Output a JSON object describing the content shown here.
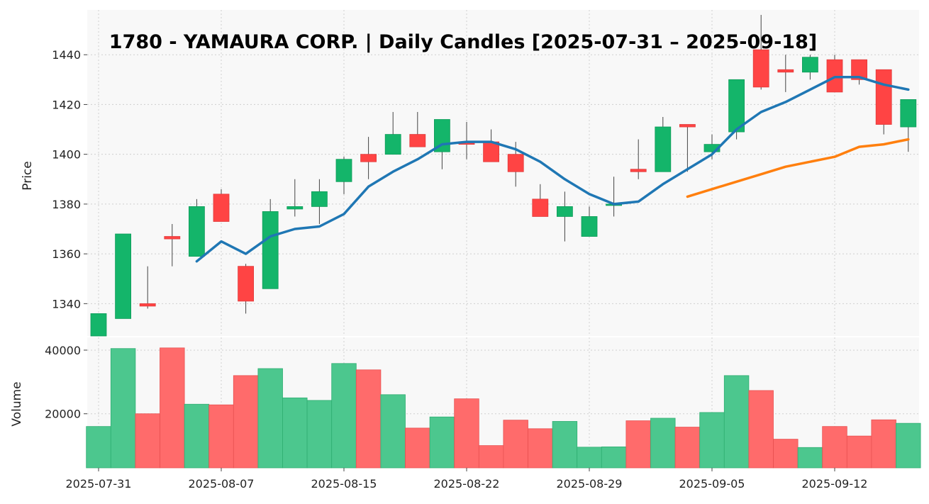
{
  "chart_data": {
    "type": "candlestick",
    "title": "1780 - YAMAURA CORP. | Daily Candles [2025-07-31 – 2025-09-18]",
    "price_axis": {
      "label": "Price",
      "ylim": [
        1327,
        1458
      ],
      "ticks": [
        1340,
        1360,
        1380,
        1400,
        1420,
        1440
      ]
    },
    "volume_axis": {
      "label": "Volume",
      "ylim": [
        3000,
        44000
      ],
      "ticks": [
        20000,
        40000
      ]
    },
    "x_tick_labels": [
      "2025-07-31",
      "2025-08-07",
      "2025-08-15",
      "2025-08-22",
      "2025-08-29",
      "2025-09-05",
      "2025-09-12"
    ],
    "x_tick_indices": [
      0,
      5,
      10,
      15,
      20,
      25,
      30
    ],
    "grid": true,
    "colors": {
      "up": "#14b56a",
      "down": "#ff4444",
      "up_volume": "#4cc78e",
      "down_volume": "#ff6b6b",
      "ma_short": "#1f77b4",
      "ma_long": "#ff7f0e",
      "plot_bg": "#f8f8f8"
    },
    "candles": [
      {
        "date": "2025-07-31",
        "open": 1327,
        "high": 1336,
        "low": 1327,
        "close": 1336
      },
      {
        "date": "2025-08-01",
        "open": 1334,
        "high": 1368,
        "low": 1334,
        "close": 1368
      },
      {
        "date": "2025-08-04",
        "open": 1340,
        "high": 1355,
        "low": 1338,
        "close": 1339
      },
      {
        "date": "2025-08-05",
        "open": 1367,
        "high": 1372,
        "low": 1355,
        "close": 1366
      },
      {
        "date": "2025-08-06",
        "open": 1359,
        "high": 1382,
        "low": 1359,
        "close": 1379
      },
      {
        "date": "2025-08-07",
        "open": 1384,
        "high": 1386,
        "low": 1373,
        "close": 1373
      },
      {
        "date": "2025-08-08",
        "open": 1355,
        "high": 1356,
        "low": 1336,
        "close": 1341
      },
      {
        "date": "2025-08-12",
        "open": 1346,
        "high": 1382,
        "low": 1346,
        "close": 1377
      },
      {
        "date": "2025-08-13",
        "open": 1378,
        "high": 1390,
        "low": 1375,
        "close": 1379
      },
      {
        "date": "2025-08-14",
        "open": 1379,
        "high": 1390,
        "low": 1372,
        "close": 1385
      },
      {
        "date": "2025-08-15",
        "open": 1389,
        "high": 1399,
        "low": 1384,
        "close": 1398
      },
      {
        "date": "2025-08-18",
        "open": 1400,
        "high": 1407,
        "low": 1390,
        "close": 1397
      },
      {
        "date": "2025-08-19",
        "open": 1400,
        "high": 1417,
        "low": 1400,
        "close": 1408
      },
      {
        "date": "2025-08-20",
        "open": 1408,
        "high": 1417,
        "low": 1403,
        "close": 1403
      },
      {
        "date": "2025-08-21",
        "open": 1401,
        "high": 1414,
        "low": 1394,
        "close": 1414
      },
      {
        "date": "2025-08-22",
        "open": 1405,
        "high": 1413,
        "low": 1398,
        "close": 1404
      },
      {
        "date": "2025-08-25",
        "open": 1405,
        "high": 1410,
        "low": 1397,
        "close": 1397
      },
      {
        "date": "2025-08-26",
        "open": 1400,
        "high": 1405,
        "low": 1387,
        "close": 1393
      },
      {
        "date": "2025-08-27",
        "open": 1382,
        "high": 1388,
        "low": 1375,
        "close": 1375
      },
      {
        "date": "2025-08-28",
        "open": 1375,
        "high": 1385,
        "low": 1365,
        "close": 1379
      },
      {
        "date": "2025-08-29",
        "open": 1367,
        "high": 1379,
        "low": 1367,
        "close": 1375
      },
      {
        "date": "2025-09-01",
        "open": 1380,
        "high": 1391,
        "low": 1375,
        "close": 1380
      },
      {
        "date": "2025-09-02",
        "open": 1394,
        "high": 1406,
        "low": 1390,
        "close": 1393
      },
      {
        "date": "2025-09-03",
        "open": 1393,
        "high": 1415,
        "low": 1393,
        "close": 1411
      },
      {
        "date": "2025-09-04",
        "open": 1412,
        "high": 1412,
        "low": 1393,
        "close": 1411
      },
      {
        "date": "2025-09-05",
        "open": 1401,
        "high": 1408,
        "low": 1398,
        "close": 1404
      },
      {
        "date": "2025-09-08",
        "open": 1409,
        "high": 1430,
        "low": 1406,
        "close": 1430
      },
      {
        "date": "2025-09-09",
        "open": 1442,
        "high": 1456,
        "low": 1426,
        "close": 1427
      },
      {
        "date": "2025-09-10",
        "open": 1434,
        "high": 1440,
        "low": 1425,
        "close": 1433
      },
      {
        "date": "2025-09-11",
        "open": 1433,
        "high": 1440,
        "low": 1430,
        "close": 1439
      },
      {
        "date": "2025-09-12",
        "open": 1438,
        "high": 1440,
        "low": 1425,
        "close": 1425
      },
      {
        "date": "2025-09-16",
        "open": 1438,
        "high": 1438,
        "low": 1428,
        "close": 1430
      },
      {
        "date": "2025-09-17",
        "open": 1434,
        "high": 1434,
        "low": 1408,
        "close": 1412
      },
      {
        "date": "2025-09-18",
        "open": 1411,
        "high": 1422,
        "low": 1401,
        "close": 1422
      }
    ],
    "volume": [
      16000,
      40500,
      20000,
      40700,
      23000,
      22800,
      32000,
      34200,
      25000,
      24200,
      35800,
      33800,
      26000,
      15500,
      19000,
      24700,
      10000,
      18000,
      15300,
      17600,
      9500,
      9600,
      17800,
      18600,
      15800,
      20400,
      32000,
      27300,
      12000,
      9400,
      16000,
      13000,
      18100,
      17000
    ],
    "ma_short": {
      "start_index": 4,
      "values": [
        1357,
        1365,
        1360,
        1367,
        1370,
        1371,
        1376,
        1387,
        1393,
        1398,
        1404,
        1405,
        1405,
        1402,
        1397,
        1390,
        1384,
        1380,
        1381,
        1388,
        1394,
        1400,
        1410,
        1417,
        1421,
        1426,
        1431,
        1431,
        1428,
        1426
      ]
    },
    "ma_long": {
      "start_index": 24,
      "values": [
        1383,
        1386,
        1389,
        1392,
        1395,
        1397,
        1399,
        1403,
        1404,
        1406
      ]
    }
  }
}
